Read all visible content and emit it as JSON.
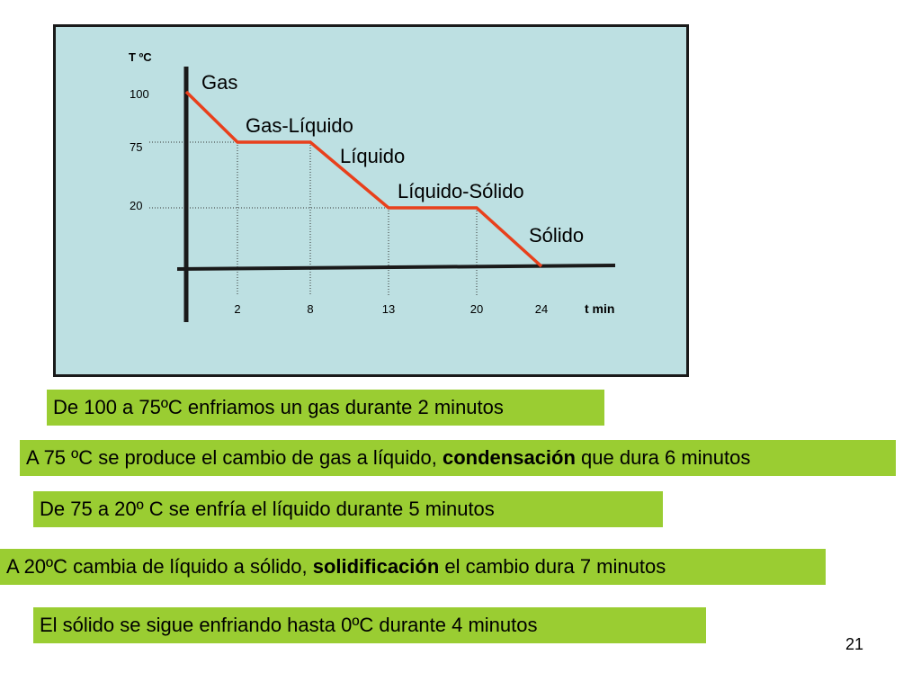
{
  "chart_data": {
    "type": "line",
    "ylabel": "T ºC",
    "xlabel": "t min",
    "y_ticks": [
      "100",
      "75",
      "20"
    ],
    "x_ticks": [
      "2",
      "8",
      "13",
      "20",
      "24"
    ],
    "series": [
      {
        "x": [
          0,
          2,
          8,
          13,
          20,
          24
        ],
        "y": [
          100,
          75,
          75,
          20,
          20,
          0
        ]
      }
    ],
    "phase_labels": [
      "Gas",
      "Gas-Líquido",
      "Líquido",
      "Líquido-Sólido",
      "Sólido"
    ],
    "line_color": "#e8401c"
  },
  "notes": [
    {
      "text": "De 100 a 75ºC enfriamos un gas durante 2 minutos"
    },
    {
      "before": "A 75 ºC se produce el cambio de gas a líquido, ",
      "bold": "condensación",
      "after": " que dura 6 minutos"
    },
    {
      "text": "De 75 a 20º C se enfría el líquido durante 5 minutos"
    },
    {
      "before": "A 20ºC cambia de líquido a sólido, ",
      "bold": "solidificación",
      "after": " el cambio dura 7 minutos"
    },
    {
      "text": "El sólido se sigue enfriando hasta 0ºC durante 4 minutos"
    }
  ],
  "page_number": "21",
  "colors": {
    "chart_bg": "#bde0e2",
    "note_bg": "#9acd32"
  }
}
